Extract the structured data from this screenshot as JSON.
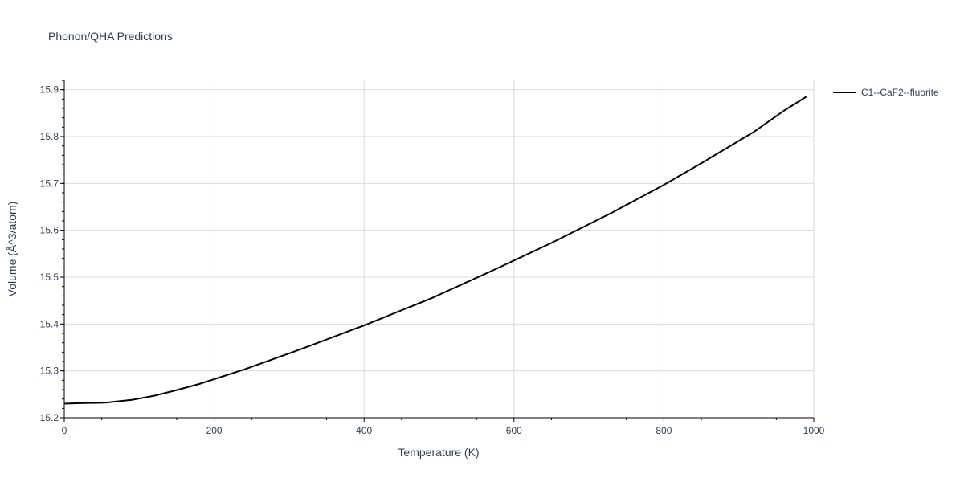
{
  "chart_data": {
    "type": "line",
    "title": "Phonon/QHA Predictions",
    "xlabel": "Temperature (K)",
    "ylabel": "Volume (Å^3/atom)",
    "xlim": [
      0,
      1000
    ],
    "ylim": [
      15.2,
      15.92
    ],
    "xticks": [
      0,
      200,
      400,
      600,
      800,
      1000
    ],
    "yticks": [
      15.2,
      15.3,
      15.4,
      15.5,
      15.6,
      15.7,
      15.8,
      15.9
    ],
    "grid": true,
    "legend_position": "top-right",
    "series": [
      {
        "name": "C1--CaF2--fluorite",
        "color": "#000000",
        "x": [
          0,
          20,
          55,
          90,
          120,
          150,
          180,
          240,
          310,
          400,
          490,
          570,
          650,
          730,
          800,
          850,
          920,
          960,
          990
        ],
        "y": [
          15.23,
          15.231,
          15.232,
          15.238,
          15.247,
          15.259,
          15.272,
          15.303,
          15.343,
          15.397,
          15.455,
          15.513,
          15.573,
          15.637,
          15.697,
          15.743,
          15.81,
          15.855,
          15.885
        ]
      }
    ]
  }
}
